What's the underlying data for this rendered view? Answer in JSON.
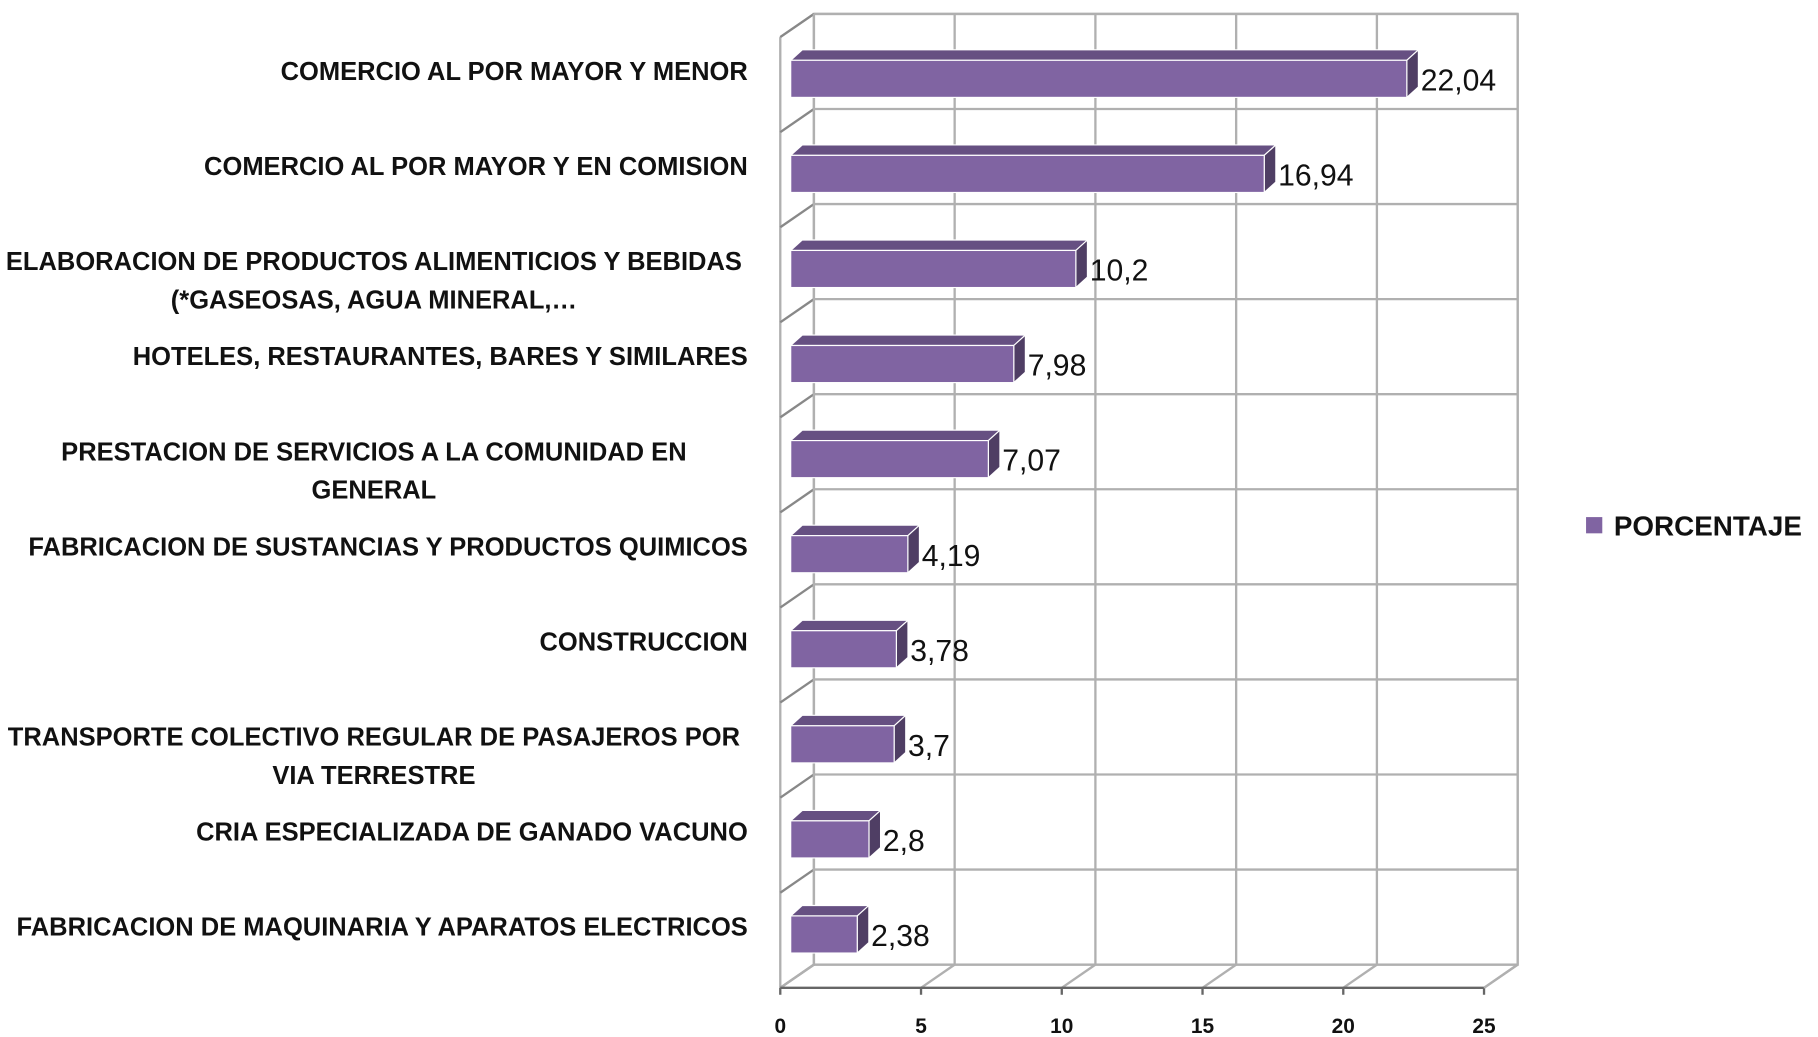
{
  "chart_data": {
    "type": "bar",
    "orientation": "horizontal",
    "categories": [
      "COMERCIO AL POR MAYOR Y MENOR",
      "COMERCIO AL POR MAYOR Y EN COMISION",
      "ELABORACION DE PRODUCTOS ALIMENTICIOS Y BEBIDAS (*GASEOSAS, AGUA MINERAL,…",
      "HOTELES, RESTAURANTES, BARES Y SIMILARES",
      "PRESTACION DE SERVICIOS A LA COMUNIDAD EN GENERAL",
      "FABRICACION DE SUSTANCIAS Y PRODUCTOS QUIMICOS",
      "CONSTRUCCION",
      "TRANSPORTE COLECTIVO REGULAR DE PASAJEROS POR VIA TERRESTRE",
      "CRIA ESPECIALIZADA DE GANADO VACUNO",
      "FABRICACION DE MAQUINARIA Y APARATOS ELECTRICOS"
    ],
    "series": [
      {
        "name": "PORCENTAJE",
        "color": "#8064a2",
        "values": [
          22.04,
          16.94,
          10.2,
          7.98,
          7.07,
          4.19,
          3.78,
          3.7,
          2.8,
          2.38
        ],
        "value_labels": [
          "22,04",
          "16,94",
          "10,2",
          "7,98",
          "7,07",
          "4,19",
          "3,78",
          "3,7",
          "2,8",
          "2,38"
        ]
      }
    ],
    "xlim": [
      0,
      25
    ],
    "xticks": [
      0,
      5,
      10,
      15,
      20,
      25
    ],
    "grid": true,
    "legend": "right"
  }
}
